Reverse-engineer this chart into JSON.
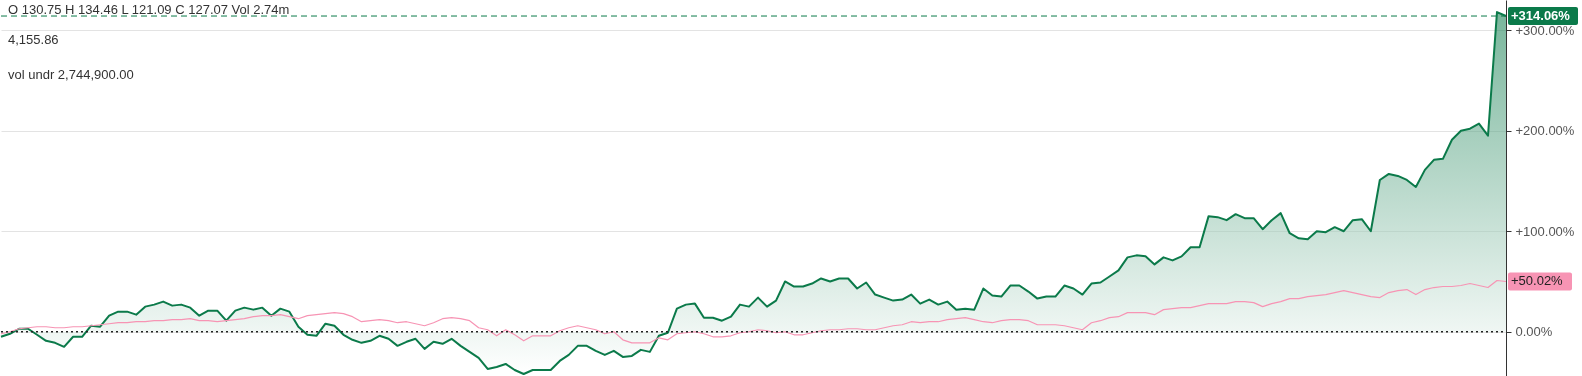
{
  "chart_data": {
    "type": "area",
    "categories": [
      null,
      null,
      null,
      null,
      null,
      null,
      null,
      null,
      null,
      null,
      null,
      null,
      null,
      null,
      null,
      null,
      null,
      null,
      null,
      null,
      null,
      null,
      null,
      null,
      null,
      null,
      null,
      null,
      null,
      null,
      null,
      null,
      null,
      null,
      null,
      null,
      null,
      null,
      null,
      null,
      null,
      null,
      null,
      null,
      null,
      null,
      null,
      null,
      null,
      null,
      null,
      null,
      null,
      null,
      null,
      null,
      null,
      null,
      null,
      null,
      null,
      null,
      null,
      null,
      null,
      null,
      null,
      null,
      null,
      null,
      null,
      null,
      null,
      null,
      null,
      null,
      null,
      null,
      null,
      null,
      null,
      null,
      null,
      null,
      null,
      null,
      null,
      null,
      null,
      null,
      null,
      null,
      null,
      null,
      null,
      null,
      null,
      null,
      null,
      null,
      null,
      null,
      null,
      null,
      null,
      null,
      null,
      null,
      null,
      null,
      null,
      null,
      null,
      null,
      null,
      null,
      null,
      null,
      null,
      null,
      null,
      null,
      null,
      null,
      null,
      null,
      null,
      null,
      null,
      null,
      null,
      null,
      null,
      null,
      null,
      null,
      null,
      null,
      null,
      null,
      null,
      null,
      null,
      null,
      null,
      null,
      null,
      null,
      null,
      null,
      null,
      null,
      null,
      null,
      null,
      null,
      null,
      null,
      null,
      null,
      null,
      null,
      null,
      null,
      null,
      null,
      null,
      null
    ],
    "series": [
      {
        "color": "#0b7a4a",
        "values": [
          -5,
          -2,
          3,
          3,
          -3,
          -9,
          -11,
          -15,
          -5,
          -5,
          6,
          5,
          16,
          20,
          20,
          17,
          25,
          27,
          30,
          26,
          27,
          24,
          16,
          21,
          21,
          11,
          21,
          24,
          22,
          24,
          16,
          23,
          20,
          5,
          -3,
          -4,
          8,
          6,
          -3,
          -8,
          -11,
          -9,
          -4,
          -7,
          -14,
          -10,
          -7,
          -17,
          -10,
          -12,
          -7,
          -14,
          -20,
          -26,
          -37,
          -35,
          -32,
          -38,
          -42,
          -38,
          -38,
          -38,
          -29,
          -23,
          -14,
          -14,
          -19,
          -23,
          -19,
          -25,
          -24,
          -18,
          -20,
          -4,
          -1,
          23,
          27,
          28,
          14,
          14,
          11,
          15,
          27,
          25,
          34,
          25,
          31,
          50,
          45,
          45,
          48,
          53,
          50,
          53,
          53,
          43,
          49,
          37,
          34,
          31,
          32,
          37,
          28,
          32,
          27,
          30,
          22,
          23,
          22,
          43,
          36,
          35,
          46,
          46,
          40,
          33,
          35,
          35,
          46,
          43,
          37,
          48,
          49,
          55,
          61,
          74,
          76,
          75,
          67,
          74,
          71,
          75,
          84,
          84,
          115,
          114,
          111,
          117,
          113,
          113,
          102,
          111,
          118,
          98,
          93,
          92,
          100,
          99,
          104,
          100,
          111,
          112,
          100,
          151,
          157,
          155,
          151,
          144,
          161,
          171,
          172,
          191,
          200,
          202,
          207,
          195,
          318,
          314.06
        ]
      },
      {
        "type": "line",
        "color": "#f794b4",
        "value_labels": [
          null,
          null,
          null,
          null,
          null,
          null,
          null,
          null,
          null,
          null,
          null,
          null,
          null,
          null,
          null,
          null,
          null,
          null,
          null,
          null,
          null,
          null,
          null,
          null,
          null,
          null,
          null,
          null,
          null,
          null,
          null,
          null,
          null,
          null,
          null,
          null,
          null,
          null,
          null,
          null,
          null,
          null,
          null,
          null,
          null,
          null,
          null,
          null,
          null,
          null,
          null,
          null,
          null,
          null,
          null,
          null,
          null,
          null,
          null,
          null,
          null,
          null,
          null,
          null,
          null,
          null,
          null,
          null,
          null,
          null,
          null,
          null,
          null,
          null,
          null,
          null,
          null,
          null,
          null,
          null,
          null,
          null,
          null,
          null,
          null,
          null,
          null,
          null,
          null,
          null,
          null,
          null,
          null,
          null,
          null,
          null,
          null,
          null,
          null,
          null,
          null,
          null,
          null,
          null,
          null,
          null,
          null,
          null,
          null,
          null,
          null,
          null,
          null,
          null,
          null,
          null,
          null,
          null,
          null,
          null,
          null,
          null,
          null,
          null,
          null,
          null,
          null,
          null,
          null,
          null,
          null,
          null,
          null,
          null,
          null,
          null,
          null,
          null,
          null,
          null,
          null,
          null,
          null,
          null,
          null,
          null,
          null,
          null,
          null,
          null,
          null,
          null,
          null,
          null,
          null,
          null,
          null,
          null,
          null,
          null,
          null,
          null,
          null,
          null,
          null,
          null,
          null,
          "+50.02%"
        ],
        "values": [
          -2,
          0,
          3,
          4,
          5,
          5,
          4,
          4,
          5,
          5,
          6,
          7,
          8,
          9,
          9,
          10,
          10,
          11,
          11,
          12,
          12,
          13,
          11,
          11,
          10,
          11,
          12,
          13,
          15,
          16,
          16,
          17,
          15,
          13,
          16,
          17,
          18,
          19,
          18,
          15,
          10,
          11,
          12,
          11,
          9,
          10,
          8,
          6,
          9,
          13,
          14,
          13,
          11,
          4,
          2,
          -4,
          2,
          -3,
          -9,
          -4,
          -4,
          -4,
          1,
          4,
          6,
          4,
          2,
          -2,
          0,
          -8,
          -11,
          -11,
          -11,
          -6,
          -8,
          -2,
          -1,
          0,
          -2,
          -5,
          -5,
          -4,
          -1,
          0,
          2,
          1,
          -1,
          0,
          -3,
          -3,
          -1,
          1,
          2,
          2,
          3,
          3,
          2,
          2,
          4,
          6,
          7,
          10,
          9,
          10,
          10,
          12,
          13,
          14,
          12,
          10,
          9,
          11,
          12,
          12,
          11,
          7,
          7,
          7,
          6,
          4,
          2,
          9,
          11,
          14,
          15,
          19,
          19,
          19,
          17,
          22,
          23,
          24,
          24,
          26,
          28,
          28,
          28,
          30,
          30,
          29,
          25,
          28,
          30,
          33,
          33,
          35,
          36,
          37,
          39,
          41,
          39,
          37,
          35,
          34,
          39,
          41,
          42,
          37,
          42,
          44,
          45,
          45,
          46,
          48,
          46,
          44,
          51,
          50.02
        ]
      }
    ],
    "ylim": [
      -44,
      330
    ],
    "yticks": [
      {
        "value": 0,
        "label": "0.00%"
      },
      {
        "value": 100,
        "label": "+100.00%"
      },
      {
        "value": 200,
        "label": "+200.00%"
      },
      {
        "value": 300,
        "label": "+300.00%"
      }
    ],
    "grid": "y",
    "tick_labels": "y",
    "ref_lines": [
      {
        "axis": "y",
        "value": 314.06,
        "label": "+314.06%",
        "color": "#0b7a4a",
        "line_style": "dashed"
      },
      {
        "axis": "y",
        "value": 0,
        "label": null,
        "color": "#222222",
        "line_style": "dotted"
      }
    ],
    "annotations": [
      "O 130.75  H 134.46  L 121.09  C 127.07  Vol 2.74m",
      "4,155.86",
      "vol undr  2,744,900.00"
    ]
  }
}
